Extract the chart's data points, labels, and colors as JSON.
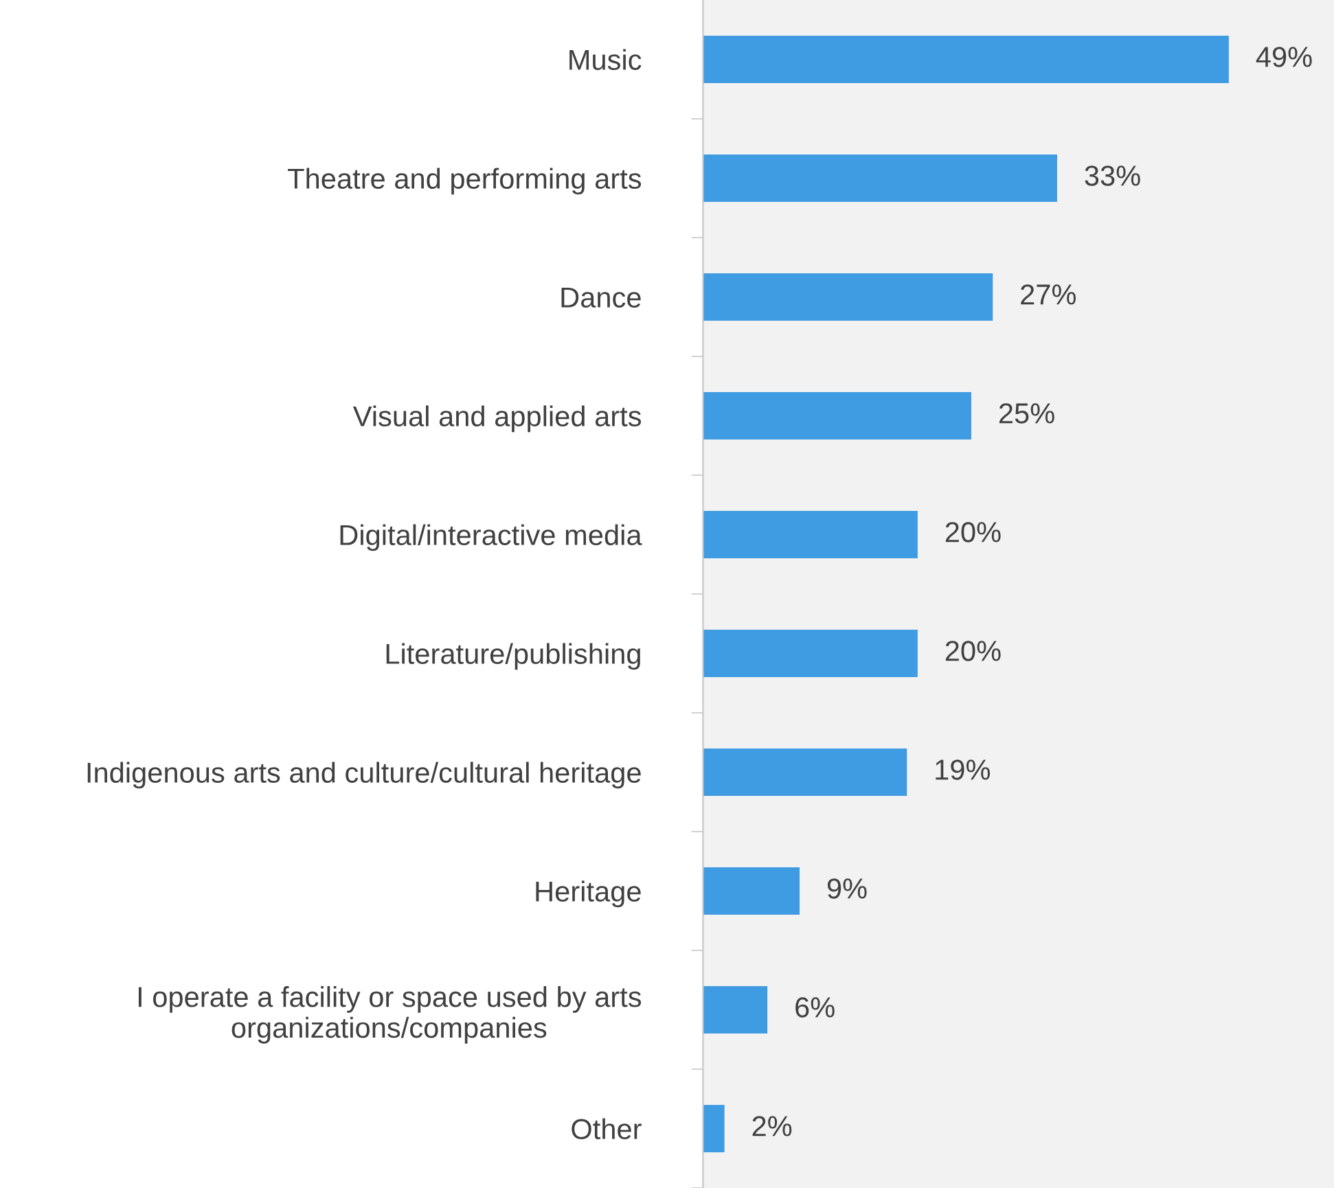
{
  "chart_data": {
    "type": "bar",
    "orientation": "horizontal",
    "categories": [
      "Music",
      "Theatre and performing arts",
      "Dance",
      "Visual and applied arts",
      "Digital/interactive media",
      "Literature/publishing",
      "Indigenous arts and culture/cultural heritage",
      "Heritage",
      "I operate a facility or space used by arts\norganizations/companies",
      "Other"
    ],
    "values": [
      49,
      33,
      27,
      25,
      20,
      20,
      19,
      9,
      6,
      2
    ],
    "value_labels": [
      "49%",
      "33%",
      "27%",
      "25%",
      "20%",
      "20%",
      "19%",
      "9%",
      "6%",
      "2%"
    ],
    "color": "#3f9be2",
    "grid": false,
    "legend": false
  }
}
